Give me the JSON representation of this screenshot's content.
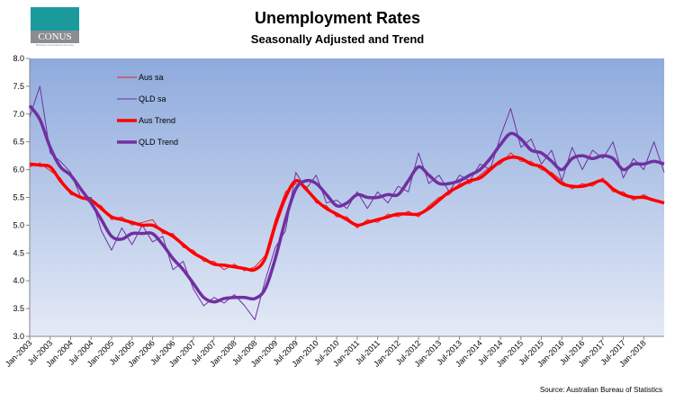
{
  "logo": {
    "text": "CONUS",
    "tagline": "Business Consultancy Services"
  },
  "chart_data": {
    "type": "line",
    "title": "Unemployment Rates",
    "subtitle": "Seasonally Adjusted and Trend",
    "source": "Source: Australian Bureau of Statistics",
    "xlabel": "",
    "ylabel": "",
    "ylim": [
      3.0,
      8.0
    ],
    "yticks": [
      "3.0",
      "3.5",
      "4.0",
      "4.5",
      "5.0",
      "5.5",
      "6.0",
      "6.5",
      "7.0",
      "7.5",
      "8.0"
    ],
    "x_start": "Jan-2003",
    "x_step": "quarterly",
    "xlim_years": [
      2003,
      2018.5
    ],
    "xticks": [
      "Jan-2003",
      "Jul-2003",
      "Jan-2004",
      "Jul-2004",
      "Jan-2005",
      "Jul-2005",
      "Jan-2006",
      "Jul-2006",
      "Jan-2007",
      "Jul-2007",
      "Jan-2008",
      "Jul-2008",
      "Jan-2009",
      "Jul-2009",
      "Jan-2010",
      "Jul-2010",
      "Jan-2011",
      "Jul-2011",
      "Jan-2012",
      "Jul-2012",
      "Jan-2013",
      "Jul-2013",
      "Jan-2014",
      "Jul-2014",
      "Jan-2015",
      "Jul-2015",
      "Jan-2016",
      "Jul-2016",
      "Jan-2017",
      "Jul-2017",
      "Jan-2018"
    ],
    "legend_position": "top-left",
    "series": [
      {
        "name": "Aus sa",
        "color": "#e8202a",
        "width": 1,
        "values": [
          6.05,
          6.12,
          5.98,
          5.85,
          5.55,
          5.52,
          5.4,
          5.35,
          5.1,
          5.15,
          5.0,
          5.05,
          5.1,
          4.85,
          4.85,
          4.6,
          4.55,
          4.35,
          4.35,
          4.2,
          4.3,
          4.18,
          4.25,
          4.45,
          5.1,
          5.6,
          5.75,
          5.7,
          5.4,
          5.35,
          5.15,
          5.15,
          4.95,
          5.1,
          5.05,
          5.2,
          5.15,
          5.25,
          5.15,
          5.35,
          5.5,
          5.55,
          5.75,
          5.75,
          5.9,
          6.05,
          6.1,
          6.3,
          6.15,
          6.15,
          6.0,
          5.95,
          5.8,
          5.65,
          5.75,
          5.7,
          5.85,
          5.6,
          5.6,
          5.45,
          5.55,
          5.45,
          5.4
        ]
      },
      {
        "name": "QLD sa",
        "color": "#7030a0",
        "width": 1,
        "values": [
          6.95,
          7.5,
          6.3,
          6.15,
          5.95,
          5.5,
          5.5,
          4.9,
          4.55,
          4.95,
          4.65,
          5.0,
          4.7,
          4.8,
          4.2,
          4.35,
          3.85,
          3.55,
          3.7,
          3.6,
          3.75,
          3.55,
          3.3,
          4.0,
          4.6,
          4.9,
          5.95,
          5.65,
          5.9,
          5.4,
          5.45,
          5.3,
          5.6,
          5.3,
          5.6,
          5.4,
          5.7,
          5.6,
          6.3,
          5.75,
          5.9,
          5.6,
          5.9,
          5.8,
          6.1,
          6.0,
          6.6,
          7.1,
          6.4,
          6.55,
          6.1,
          6.35,
          5.8,
          6.4,
          6.0,
          6.35,
          6.2,
          6.5,
          5.85,
          6.2,
          6.0,
          6.5,
          5.95
        ]
      },
      {
        "name": "Aus Trend",
        "color": "#ff0000",
        "width": 3.5,
        "values": [
          6.1,
          6.08,
          6.05,
          5.8,
          5.6,
          5.5,
          5.45,
          5.3,
          5.15,
          5.1,
          5.05,
          5.0,
          5.0,
          4.9,
          4.8,
          4.65,
          4.5,
          4.4,
          4.3,
          4.28,
          4.25,
          4.22,
          4.2,
          4.4,
          5.0,
          5.5,
          5.8,
          5.65,
          5.45,
          5.3,
          5.2,
          5.1,
          5.0,
          5.05,
          5.1,
          5.15,
          5.2,
          5.2,
          5.2,
          5.3,
          5.45,
          5.6,
          5.7,
          5.8,
          5.85,
          6.0,
          6.15,
          6.22,
          6.2,
          6.1,
          6.05,
          5.9,
          5.75,
          5.7,
          5.7,
          5.75,
          5.8,
          5.65,
          5.55,
          5.5,
          5.5,
          5.45,
          5.4
        ]
      },
      {
        "name": "QLD Trend",
        "color": "#7030a0",
        "width": 3.5,
        "values": [
          7.15,
          6.9,
          6.4,
          6.05,
          5.9,
          5.65,
          5.4,
          5.1,
          4.8,
          4.75,
          4.85,
          4.85,
          4.85,
          4.65,
          4.4,
          4.2,
          3.95,
          3.7,
          3.62,
          3.68,
          3.7,
          3.7,
          3.68,
          3.85,
          4.4,
          5.1,
          5.65,
          5.8,
          5.75,
          5.55,
          5.35,
          5.4,
          5.55,
          5.5,
          5.5,
          5.55,
          5.55,
          5.8,
          6.05,
          5.9,
          5.75,
          5.75,
          5.8,
          5.9,
          6.0,
          6.2,
          6.45,
          6.65,
          6.55,
          6.35,
          6.3,
          6.15,
          6.0,
          6.2,
          6.25,
          6.2,
          6.25,
          6.2,
          6.0,
          6.1,
          6.1,
          6.15,
          6.1
        ]
      }
    ]
  }
}
